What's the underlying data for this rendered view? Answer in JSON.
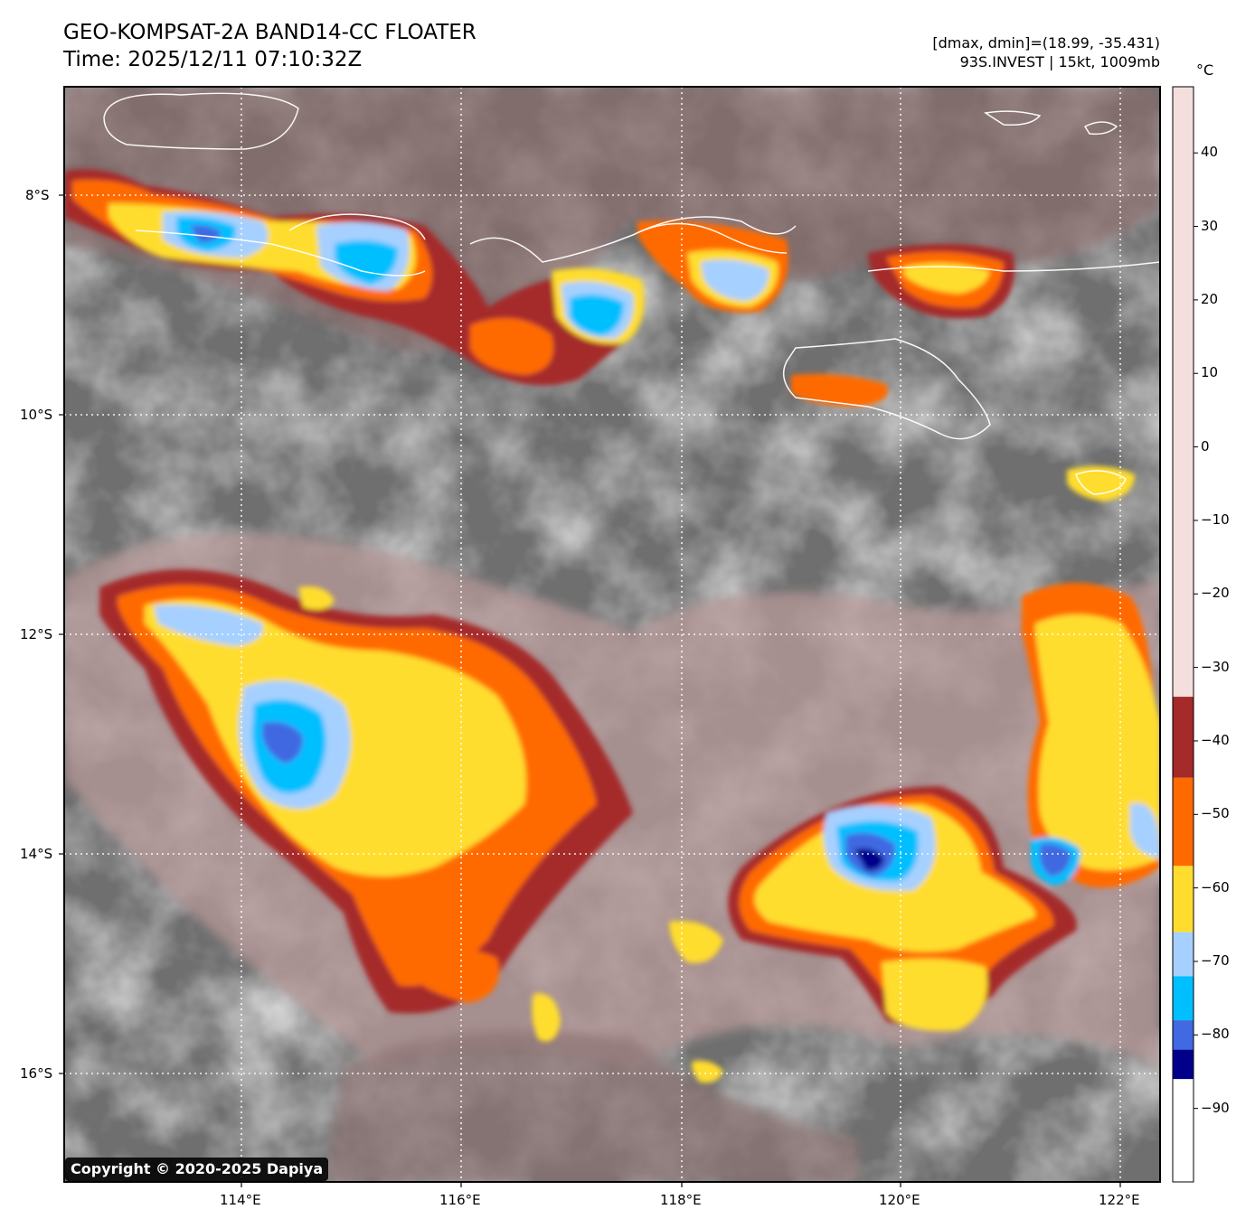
{
  "header": {
    "title": "GEO-KOMPSAT-2A BAND14-CC FLOATER",
    "time": "Time: 2025/12/11 07:10:32Z",
    "range_info": "[dmax, dmin]=(18.99, -35.431)",
    "storm_info": "93S.INVEST | 15kt, 1009mb"
  },
  "colorbar": {
    "unit": "°C",
    "ticks": [
      "40",
      "30",
      "20",
      "10",
      "0",
      "−10",
      "−20",
      "−30",
      "−40",
      "−50",
      "−60",
      "−70",
      "−80",
      "−90"
    ],
    "bands": [
      {
        "from": -100,
        "to": -86,
        "color": "#ffffff"
      },
      {
        "from": -86,
        "to": -82,
        "color": "#00008b"
      },
      {
        "from": -82,
        "to": -78,
        "color": "#4169e1"
      },
      {
        "from": -78,
        "to": -72,
        "color": "#00bfff"
      },
      {
        "from": -72,
        "to": -66,
        "color": "#a6d0ff"
      },
      {
        "from": -66,
        "to": -57,
        "color": "#ffdd2e"
      },
      {
        "from": -57,
        "to": -45,
        "color": "#ff6a00"
      },
      {
        "from": -45,
        "to": -34,
        "color": "#a52a2a"
      }
    ],
    "gradient_stops": [
      {
        "t": -34,
        "color": "#f5dede"
      },
      {
        "t": -20,
        "color": "#d8b8b8"
      },
      {
        "t": 0,
        "color": "#8e6868"
      },
      {
        "t": 8,
        "color": "#6b4f4f"
      },
      {
        "t": 9,
        "color": "#ffffff"
      },
      {
        "t": 20,
        "color": "#9a9a9a"
      },
      {
        "t": 30,
        "color": "#222222"
      },
      {
        "t": 49,
        "color": "#000000"
      }
    ],
    "range": [
      -100,
      49
    ]
  },
  "map": {
    "lat_labels": [
      "8°S",
      "10°S",
      "12°S",
      "14°S",
      "16°S"
    ],
    "lon_labels": [
      "114°E",
      "116°E",
      "118°E",
      "120°E",
      "122°E"
    ]
  },
  "copyright": "Copyright © 2020-2025 Dapiya"
}
